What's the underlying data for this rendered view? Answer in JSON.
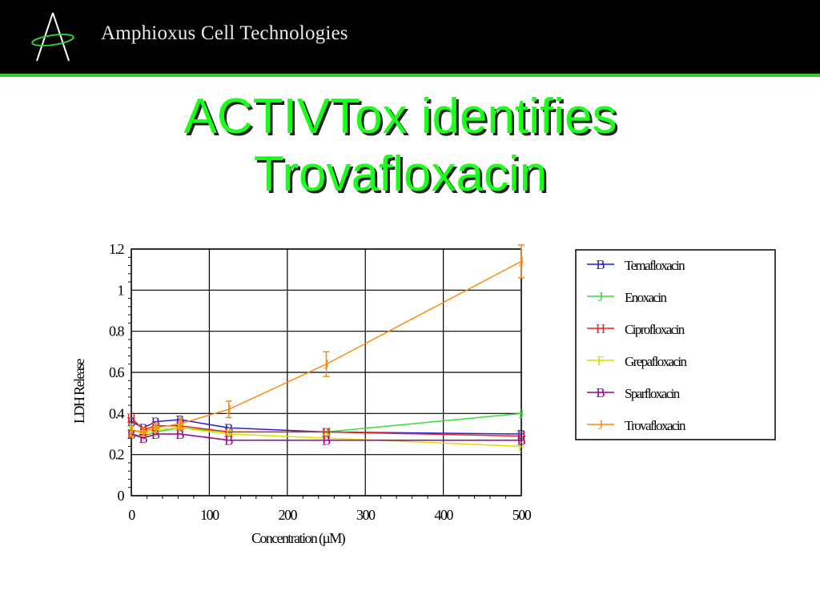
{
  "header": {
    "company_name": "Amphioxus Cell Technologies",
    "logo_icon": "amphioxus-logo-icon",
    "background_color": "#000000",
    "rule_color": "#33cc33"
  },
  "slide": {
    "title_line1": "ACTIVTox identifies",
    "title_line2": "Trovafloxacin",
    "title_color": "#1aff1a"
  },
  "chart_data": {
    "type": "line",
    "xlabel": "Concentration (µM)",
    "ylabel": "LDH Release",
    "xlim": [
      0,
      500
    ],
    "ylim": [
      0,
      1.2
    ],
    "xticks": [
      0,
      100,
      200,
      300,
      400,
      500
    ],
    "yticks": [
      0,
      0.2,
      0.4,
      0.6,
      0.8,
      1,
      1.2
    ],
    "grid": true,
    "legend_position": "right",
    "x": [
      0,
      15.6,
      31.25,
      62.5,
      125,
      250,
      500
    ],
    "series": [
      {
        "name": "Temafloxacin",
        "marker": "B",
        "color": "#2222cc",
        "values": [
          0.36,
          0.33,
          0.36,
          0.37,
          0.33,
          0.31,
          0.3
        ]
      },
      {
        "name": "Enoxacin",
        "marker": "J",
        "color": "#33dd33",
        "values": [
          0.3,
          0.29,
          0.31,
          0.33,
          0.31,
          0.31,
          0.4
        ]
      },
      {
        "name": "Ciprofloxacin",
        "marker": "H",
        "color": "#ee2222",
        "values": [
          0.38,
          0.32,
          0.34,
          0.34,
          0.31,
          0.31,
          0.29
        ]
      },
      {
        "name": "Grepafloxacin",
        "marker": "F",
        "color": "#dddd00",
        "values": [
          0.32,
          0.3,
          0.32,
          0.33,
          0.3,
          0.28,
          0.24
        ]
      },
      {
        "name": "Sparfloxacin",
        "marker": "B",
        "color": "#990099",
        "values": [
          0.3,
          0.28,
          0.3,
          0.3,
          0.27,
          0.27,
          0.27
        ]
      },
      {
        "name": "Trovafloxacin",
        "marker": "J",
        "color": "#ff8811",
        "values": [
          0.32,
          0.31,
          0.33,
          0.35,
          0.42,
          0.64,
          1.14
        ],
        "error": [
          0.03,
          0.02,
          0.02,
          0.03,
          0.04,
          0.06,
          0.08
        ]
      }
    ]
  }
}
